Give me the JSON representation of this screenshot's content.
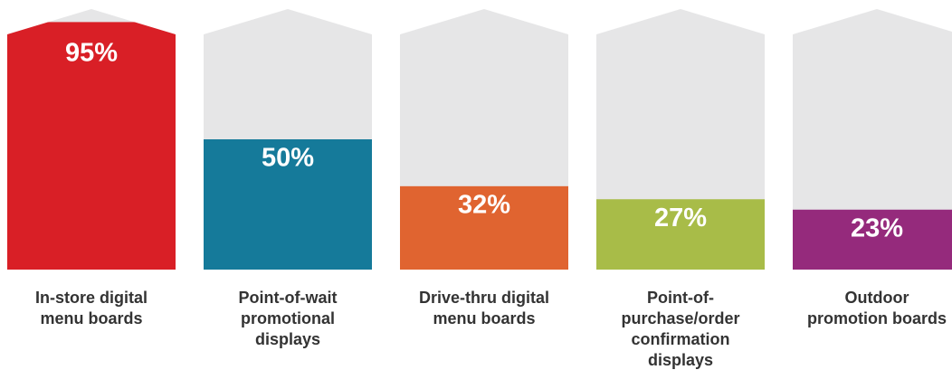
{
  "chart_data": {
    "type": "bar",
    "categories": [
      "In-store digital menu boards",
      "Point-of-wait promotional displays",
      "Drive-thru digital menu boards",
      "Point-of-purchase/order confirmation displays",
      "Outdoor promotion boards"
    ],
    "values": [
      95,
      50,
      32,
      27,
      23
    ],
    "value_labels": [
      "95%",
      "50%",
      "32%",
      "27%",
      "23%"
    ],
    "colors": [
      "#d91f26",
      "#157a9a",
      "#e06430",
      "#a8bc48",
      "#952a7c"
    ],
    "background_color": "#e6e6e7",
    "ylim": [
      0,
      100
    ]
  }
}
